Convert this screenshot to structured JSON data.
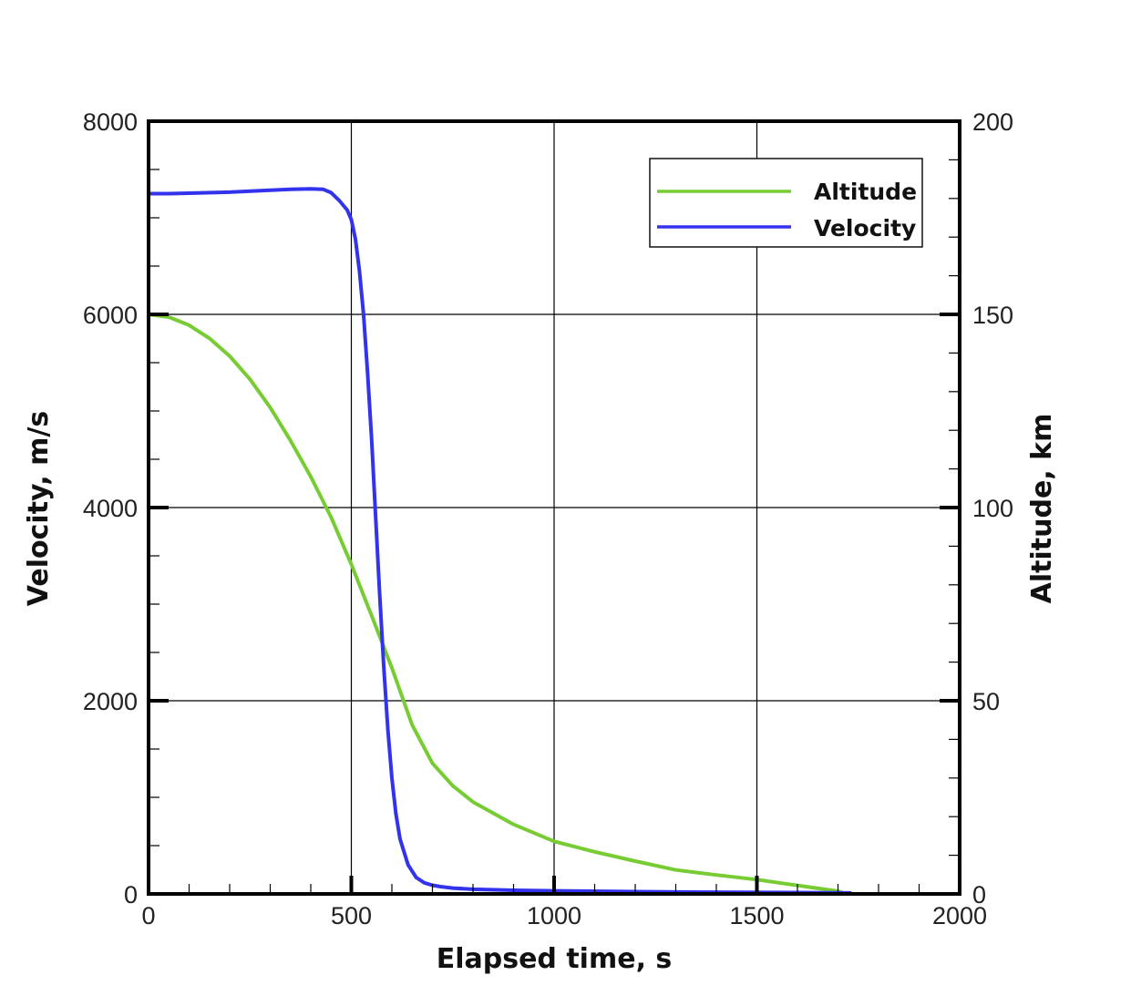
{
  "chart_data": {
    "type": "line",
    "title": "",
    "xlabel": "Elapsed time, s",
    "ylabel_left": "Velocity, m/s",
    "ylabel_right": "Altitude,  km",
    "xlim": [
      0,
      2000
    ],
    "ylim_left": [
      0,
      8000
    ],
    "ylim_right": [
      0,
      200
    ],
    "x_ticks": [
      "0",
      "500",
      "1000",
      "1500",
      "2000"
    ],
    "y_left_ticks": [
      "0",
      "2000",
      "4000",
      "6000",
      "8000"
    ],
    "y_right_ticks": [
      "0",
      "50",
      "100",
      "150",
      "200"
    ],
    "grid": true,
    "legend_position": "top-right",
    "series": [
      {
        "name": "Altitude",
        "axis": "right",
        "color": "#77cc33",
        "x": [
          0,
          50,
          100,
          150,
          200,
          250,
          300,
          350,
          400,
          450,
          500,
          550,
          600,
          650,
          700,
          750,
          800,
          900,
          1000,
          1100,
          1200,
          1300,
          1400,
          1500,
          1600,
          1700,
          1720
        ],
        "y": [
          150,
          149.3,
          147.2,
          143.8,
          139.2,
          133.2,
          125.9,
          117.3,
          108,
          97.5,
          85.3,
          72,
          58.5,
          43.7,
          33.8,
          28,
          23.8,
          18,
          13.6,
          10.9,
          8.5,
          6.2,
          4.9,
          3.7,
          2.2,
          0.7,
          0
        ]
      },
      {
        "name": "Velocity",
        "axis": "left",
        "color": "#3333ee",
        "x": [
          0,
          50,
          100,
          200,
          300,
          350,
          400,
          430,
          450,
          470,
          490,
          500,
          510,
          520,
          530,
          540,
          550,
          560,
          570,
          580,
          590,
          600,
          610,
          620,
          640,
          660,
          680,
          700,
          720,
          750,
          800,
          900,
          1000,
          1200,
          1400,
          1600,
          1730
        ],
        "y": [
          7250,
          7250,
          7255,
          7265,
          7285,
          7295,
          7300,
          7295,
          7260,
          7180,
          7080,
          6980,
          6780,
          6450,
          6000,
          5400,
          4700,
          3900,
          3100,
          2350,
          1700,
          1200,
          830,
          570,
          300,
          170,
          115,
          90,
          75,
          60,
          48,
          38,
          32,
          24,
          18,
          14,
          10
        ]
      }
    ]
  }
}
